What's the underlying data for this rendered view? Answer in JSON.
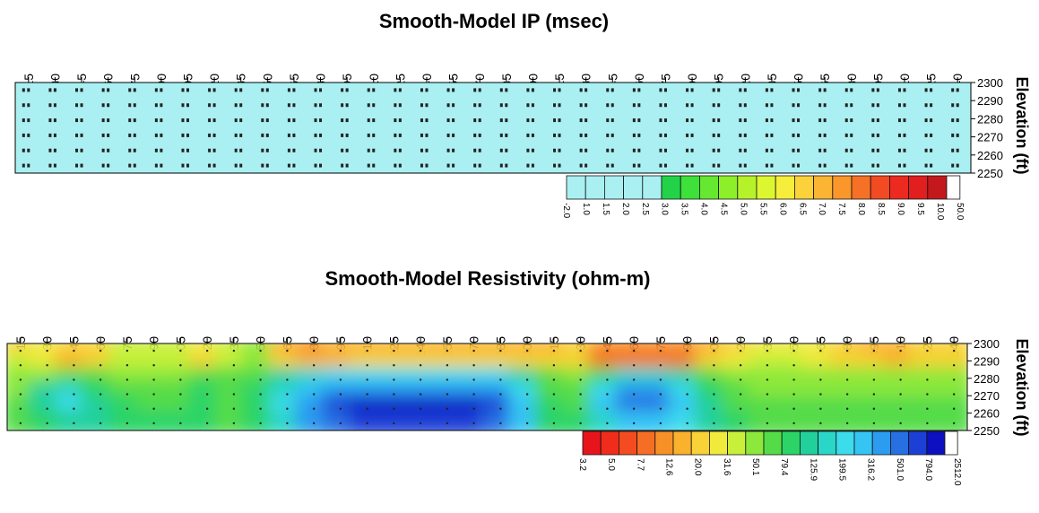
{
  "chart_data": [
    {
      "type": "heatmap",
      "title": "Smooth-Model IP (msec)",
      "xlabel": "",
      "ylabel": "Elevation (ft)",
      "x_ticks": [
        "15",
        "30",
        "45",
        "60",
        "75",
        "90",
        "105",
        "120",
        "135",
        "150",
        "165",
        "180",
        "195",
        "210",
        "225",
        "240",
        "255",
        "270",
        "285",
        "300",
        "315",
        "330",
        "345",
        "360",
        "375",
        "390",
        "405",
        "420",
        "435",
        "450",
        "465",
        "480",
        "495",
        "510",
        "525",
        "540"
      ],
      "y_ticks": [
        "2300",
        "2290",
        "2280",
        "2270",
        "2260",
        "2250"
      ],
      "xlim": [
        7.5,
        547.5
      ],
      "ylim": [
        2250,
        2300
      ],
      "grid": false,
      "colorbar": {
        "labels": [
          "-2.0",
          "1.0",
          "1.5",
          "2.0",
          "2.5",
          "3.0",
          "3.5",
          "4.0",
          "4.5",
          "5.0",
          "5.5",
          "6.0",
          "6.5",
          "7.0",
          "7.5",
          "8.0",
          "8.5",
          "9.0",
          "9.5",
          "10.0",
          "50.0"
        ],
        "colors": [
          "#aaf0f2",
          "#aaf0f2",
          "#aaf0f2",
          "#aaf0f2",
          "#aaf0f2",
          "#22d34a",
          "#3ee03a",
          "#66e830",
          "#8cef2a",
          "#b6f22a",
          "#dcf630",
          "#f6ee3a",
          "#fbd23a",
          "#fbb532",
          "#fa962a",
          "#f67026",
          "#f24a22",
          "#ec2a20",
          "#e01f1e",
          "#c4191c"
        ]
      },
      "values_note_depth_rows": 6,
      "values": [
        [
          1,
          1,
          1,
          1,
          1,
          1,
          1,
          1,
          1,
          1,
          1,
          1,
          1,
          1,
          1,
          1,
          1,
          1,
          1,
          1,
          1,
          1,
          1,
          1,
          1,
          1,
          1,
          1,
          1,
          1,
          1,
          1,
          1,
          1,
          1,
          1
        ],
        [
          1,
          1,
          1,
          1,
          1,
          1,
          1,
          1,
          1,
          1,
          1,
          1,
          1,
          1,
          1,
          1,
          1,
          1,
          1,
          1,
          1,
          1,
          1,
          1,
          1,
          1,
          1,
          1,
          1,
          1,
          1,
          1,
          1,
          1,
          1,
          1
        ],
        [
          1,
          1,
          1,
          1,
          1,
          1,
          1,
          1,
          1,
          1,
          1,
          1,
          1,
          1,
          1,
          1,
          1,
          1,
          1,
          1,
          1,
          1,
          1,
          1,
          1,
          1,
          1,
          1,
          1,
          1,
          1,
          1,
          1,
          1,
          1,
          1
        ],
        [
          1,
          1,
          1,
          1,
          1,
          1,
          1,
          1,
          1,
          1,
          1,
          1,
          1,
          1,
          1,
          1,
          1,
          1,
          1,
          1,
          1,
          1,
          1,
          1,
          1,
          1,
          1,
          1,
          1,
          1,
          1,
          1,
          1,
          1,
          1,
          1
        ],
        [
          1,
          1,
          1,
          1,
          1,
          1,
          1,
          1,
          1,
          1,
          1,
          1,
          1,
          1,
          1,
          1,
          1,
          1,
          1,
          1,
          1,
          1,
          1,
          1,
          1,
          1,
          1,
          1,
          1,
          1,
          1,
          1,
          1,
          1,
          1,
          1
        ],
        [
          1,
          1,
          1,
          1,
          1,
          1,
          1,
          1,
          1,
          1,
          1,
          1,
          1,
          1,
          1,
          1,
          1,
          1,
          1,
          1,
          1,
          1,
          1,
          1,
          1,
          1,
          1,
          1,
          1,
          1,
          1,
          1,
          1,
          1,
          1,
          1
        ]
      ]
    },
    {
      "type": "heatmap",
      "title": "Smooth-Model Resistivity (ohm-m)",
      "xlabel": "",
      "ylabel": "Elevation (ft)",
      "x_ticks": [
        "15",
        "30",
        "45",
        "60",
        "75",
        "90",
        "105",
        "120",
        "135",
        "150",
        "165",
        "180",
        "195",
        "210",
        "225",
        "240",
        "255",
        "270",
        "285",
        "300",
        "315",
        "330",
        "345",
        "360",
        "375",
        "390",
        "405",
        "420",
        "435",
        "450",
        "465",
        "480",
        "495",
        "510",
        "525",
        "540"
      ],
      "y_ticks": [
        "2300",
        "2290",
        "2280",
        "2270",
        "2260",
        "2250"
      ],
      "xlim": [
        7.5,
        547.5
      ],
      "ylim": [
        2250,
        2300
      ],
      "grid": false,
      "colorbar": {
        "labels": [
          "3.2",
          "5.0",
          "7.7",
          "12.6",
          "20.0",
          "31.6",
          "50.1",
          "79.4",
          "125.9",
          "199.5",
          "316.2",
          "501.0",
          "794.0",
          "2512.0"
        ],
        "colors": [
          "#e8141c",
          "#f02c1c",
          "#f44c20",
          "#f66e24",
          "#f89028",
          "#fab22e",
          "#f8d236",
          "#f0ea3c",
          "#c8f03a",
          "#8ce83a",
          "#54dc48",
          "#2cd468",
          "#22d09c",
          "#2ad6c8",
          "#3cdcec",
          "#36c4f4",
          "#2c9cf0",
          "#2670e2",
          "#1c40d6",
          "#0c10c0"
        ],
        "scale": "log"
      },
      "values_note_depth_rows": 6,
      "values": [
        [
          30,
          40,
          25,
          30,
          60,
          60,
          50,
          40,
          60,
          70,
          20,
          15,
          18,
          22,
          20,
          20,
          20,
          22,
          22,
          22,
          20,
          25,
          15,
          14,
          14,
          16,
          20,
          30,
          40,
          45,
          40,
          25,
          20,
          20,
          30,
          25
        ],
        [
          50,
          40,
          20,
          28,
          60,
          60,
          50,
          25,
          60,
          70,
          30,
          20,
          20,
          25,
          25,
          25,
          25,
          25,
          25,
          25,
          25,
          30,
          12,
          10,
          10,
          12,
          25,
          40,
          50,
          50,
          45,
          30,
          25,
          22,
          30,
          30
        ],
        [
          70,
          80,
          120,
          100,
          70,
          70,
          70,
          90,
          90,
          120,
          180,
          300,
          400,
          400,
          400,
          400,
          400,
          400,
          350,
          200,
          100,
          80,
          150,
          250,
          250,
          180,
          100,
          80,
          70,
          70,
          70,
          70,
          70,
          70,
          70,
          70
        ],
        [
          80,
          200,
          250,
          150,
          100,
          90,
          100,
          140,
          90,
          150,
          300,
          600,
          800,
          900,
          900,
          900,
          900,
          900,
          700,
          400,
          120,
          100,
          400,
          700,
          700,
          400,
          150,
          100,
          80,
          80,
          80,
          80,
          80,
          80,
          80,
          80
        ],
        [
          90,
          200,
          400,
          200,
          140,
          120,
          120,
          160,
          100,
          160,
          400,
          900,
          1500,
          2000,
          2000,
          2000,
          2000,
          2000,
          1500,
          600,
          150,
          120,
          500,
          1200,
          1200,
          600,
          200,
          120,
          100,
          100,
          100,
          100,
          100,
          100,
          100,
          100
        ],
        [
          120,
          150,
          200,
          180,
          160,
          140,
          130,
          150,
          120,
          160,
          300,
          700,
          1000,
          1400,
          1400,
          1400,
          1400,
          1400,
          1000,
          500,
          150,
          130,
          300,
          600,
          600,
          400,
          200,
          130,
          110,
          110,
          110,
          110,
          110,
          110,
          110,
          110
        ]
      ]
    }
  ]
}
